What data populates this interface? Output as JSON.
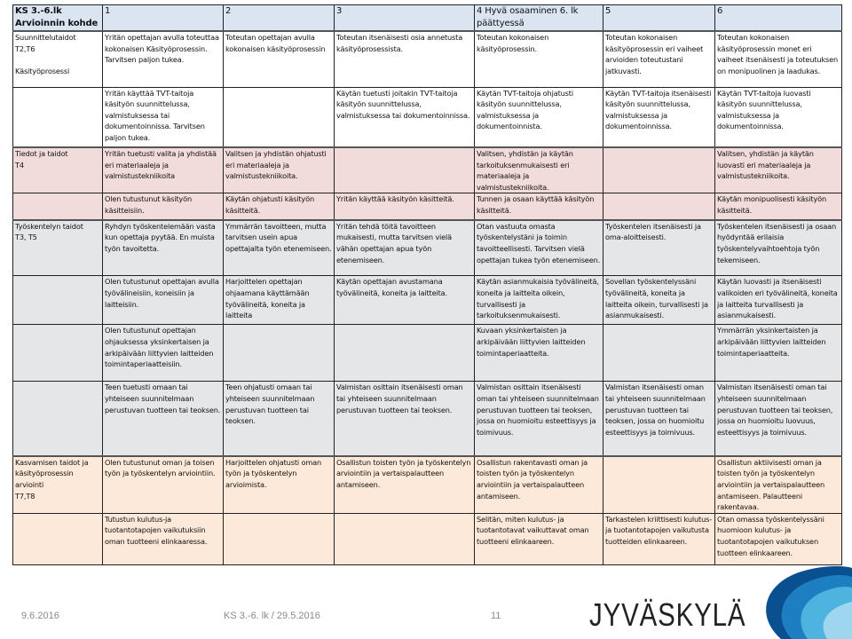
{
  "table": {
    "header": [
      "KS 3.-6.lk\nArvioinnin  kohde",
      "1",
      "2",
      "3",
      "4 Hyvä osaaminen 6. lk päättyessä",
      "5",
      "6"
    ],
    "rows": [
      {
        "style": "white",
        "height": 63,
        "cells": [
          "Suunnittelutaidot\nT2,T6\n\nKäsityöprosessi",
          "Yritän opettajan avulla toteuttaa kokonaisen Käsityöprosessin. Tarvitsen paljon tukea.",
          "Toteutan opettajan avulla kokonaisen käsityöprosessin",
          "Toteutan itsenäisesti osia annetusta käsityöprosessista.",
          "Toteutan kokonaisen käsityöprosessin.",
          "Toteutan kokonaisen käsityöprosessin eri vaiheet arvioiden toteutustani jatkuvasti.",
          "Toteutan kokonaisen käsityöprosessin monet eri vaiheet itsenäisesti ja toteutuksen on monipuolinen ja laadukas."
        ]
      },
      {
        "style": "white",
        "height": 68,
        "cells": [
          "",
          "Yritän käyttää TVT-taitoja käsityön suunnittelussa, valmistuksessa tai dokumentoinnissa. Tarvitsen paljon tukea.",
          "",
          "Käytän tuetusti  joitakin TVT-taitoja käsityön suunnittelussa, valmistuksessa tai dokumentoinnissa.",
          "Käytän TVT-taitoja ohjatusti käsityön suunnittelussa, valmistuksessa ja dokumentoinnista.",
          "Käytän TVT-taitoja itsenäisesti käsityön suunnittelussa, valmistuksessa ja dokumentoinnissa.",
          "Käytän TVT-taitoja luovasti käsityön suunnittelussa, valmistuksessa ja dokumentoinnissa."
        ]
      },
      {
        "style": "pink",
        "height": 51,
        "cells": [
          "Tiedot ja taidot\nT4",
          "Yritän tuetusti valita ja yhdistää eri materiaaleja ja valmistustekniikoita",
          "Valitsen ja yhdistän ohjatusti eri materiaaleja ja valmistustekniikoita.",
          "",
          "Valitsen, yhdistän ja käytän tarkoituksenmukaisesti eri materiaaleja ja valmistustekniikoita.",
          "",
          "Valitsen, yhdistän ja käytän luovasti eri materiaaleja ja valmistustekniikoita."
        ]
      },
      {
        "style": "pink",
        "height": 30,
        "cells": [
          "",
          "Olen tutustunut käsityön käsitteisiin.",
          "Käytän ohjatusti käsityön käsitteitä.",
          "Yritän käyttää käsityön käsitteitä.",
          "Tunnen ja osaan käyttää käsityön käsitteitä.",
          "",
          "Käytän monipuolisesti käsityön käsitteitä."
        ]
      },
      {
        "style": "gray",
        "height": 63,
        "cells": [
          "Työskentelyn taidot\nT3, T5",
          "Ryhdyn työskentelemään vasta kun opettaja pyytää. En muista työn tavoitetta.",
          "Ymmärrän tavoitteen, mutta tarvitsen usein apua opettajalta työn etenemiseen.",
          "Yritän tehdä töitä tavoitteen mukaisesti, mutta tarvitsen vielä vähän opettajan apua työn etenemiseen.",
          "Otan vastuuta omasta työskentelystäni ja toimin tavoitteellisesti. Tarvitsen vielä opettajan tukea työn etenemiseen.",
          "Työskentelen itsenäisesti ja oma-aloitteisesti.",
          "Työskentelen itsenäisesti ja osaan hyödyntää erilaisia työskentelyvaihtoehtoja työn tekemiseen."
        ]
      },
      {
        "style": "gray",
        "height": 55,
        "cells": [
          "",
          "Olen tutustunut opettajan avulla työvälineisiin, koneisiin ja laitteisiin.",
          "Harjoittelen opettajan ohjaamana käyttämään työvälineitä, koneita ja laitteita",
          "Käytän opettajan avustamana työvälineitä, koneita ja laitteita.",
          "Käytän asianmukaisia työvälineitä, koneita ja laitteita oikein, turvallisesti ja tarkoituksenmukaisesti.",
          "Sovellan työskentelyssäni työvälineitä, koneita ja laitteita oikein, turvallisesti ja asianmukaisesti.",
          "Käytän luovasti ja itsenäisesti valikoiden eri työvälineitä, koneita ja laitteita turvallisesti ja asianmukaisesti."
        ]
      },
      {
        "style": "gray",
        "height": 64,
        "cells": [
          "",
          "Olen tutustunut opettajan ohjauksessa yksinkertaisen ja arkipäivään liittyvien laitteiden toimintaperiaatteisiin.",
          "",
          "",
          "Kuvaan yksinkertaisten ja arkipäivään liittyvien laitteiden toimintaperiaatteita.",
          "",
          "Ymmärrän yksinkertaisten ja arkipäivään liittyvien laitteiden toimintaperiaatteita."
        ]
      },
      {
        "style": "gray",
        "height": 84,
        "cells": [
          "",
          "Teen tuetusti omaan tai yhteiseen suunnitelmaan perustuvan tuotteen tai teoksen.",
          "Teen ohjatusti omaan tai yhteiseen suunnitelmaan perustuvan tuotteen tai teoksen.",
          "Valmistan osittain itsenäisesti oman tai yhteiseen suunnitelmaan perustuvan tuotteen tai teoksen.",
          "Valmistan osittain itsenäisesti oman tai yhteiseen suunnitelmaan perustuvan tuotteen tai teoksen, jossa on huomioitu esteettisyys ja toimivuus.",
          "Valmistan itsenäisesti oman tai yhteiseen suunnitelmaan perustuvan tuotteen tai teoksen, jossa on huomioitu esteettisyys ja toimivuus.",
          "Valmistan itsenäisesti oman tai yhteiseen suunnitelmaan perustuvan tuotteen tai teoksen, jossa on huomioitu luovuus, esteettisyys ja toimivuus."
        ]
      },
      {
        "style": "peach",
        "height": 64,
        "cells": [
          "Kasvamisen taidot ja käsityöprosessin arviointi\nT7,T8",
          "Olen tutustunut oman ja toisen työn ja työskentelyn arviointiin.",
          "Harjoittelen ohjatusti oman työn ja työskentelyn arvioimista.",
          "Osallistun toisten työn ja työskentelyn arviointiin ja vertaispalautteen antamiseen.",
          "Osallistun rakentavasti oman ja toisten työn ja työskentelyn arviointiin ja vertaispalautteen antamiseen.",
          "",
          "Osallistun aktiivisesti oman ja toisten työn ja työskentelyn arviointiin ja vertaispalautteen antamiseen. Palautteeni rakentavaa."
        ]
      },
      {
        "style": "peach",
        "height": 58,
        "cells": [
          "",
          "Tutustun kulutus-ja tuotantotapojen vaikutuksiin oman tuotteeni elinkaaressa.",
          "",
          "",
          "Selitän, miten kulutus- ja tuotantotavat vaikuttavat oman tuotteeni elinkaareen.",
          "Tarkastelen kriittisesti kulutus- ja tuotantotapojen vaikutusta tuotteiden elinkaareen.",
          "Otan omassa työskentelyssäni huomioon kulutus- ja tuotantotapojen vaikutuksen tuotteen elinkaareen."
        ]
      }
    ]
  },
  "footer": {
    "date": "9.6.2016",
    "title": "KS 3.-6. lk / 29.5.2016",
    "page": "11"
  },
  "logo": {
    "text": "JYVÄSKYLÄ",
    "colors": [
      "#0a4f8f",
      "#1d7fc1",
      "#4fb3e0",
      "#9fd6ef"
    ]
  }
}
